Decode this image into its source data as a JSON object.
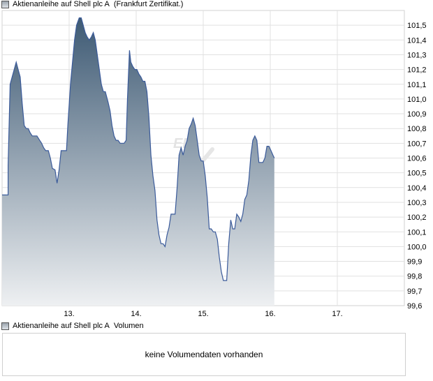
{
  "title_prefix": "Aktienanleihe auf Shell plc A",
  "title_suffix": "(Frankfurt Zertifikat.)",
  "volume_legend_prefix": "Aktienanleihe auf Shell plc A",
  "volume_legend_suffix": "Volumen",
  "volume_message": "keine Volumendaten vorhanden",
  "watermark_left": "EN",
  "watermark_right": "CK",
  "colors": {
    "line": "#3a5a9a",
    "fill_top": "#3e5a74",
    "fill_bottom": "#eef0f2",
    "grid": "#e1e1e1"
  },
  "chart_data": {
    "type": "area",
    "ylim": [
      99.6,
      101.6
    ],
    "y_ticks": [
      "101,5",
      "101,4",
      "101,3",
      "101,2",
      "101,1",
      "101,0",
      "100,9",
      "100,8",
      "100,7",
      "100,6",
      "100,5",
      "100,4",
      "100,3",
      "100,2",
      "100,1",
      "100,0",
      "99,9",
      "99,8",
      "99,7",
      "99,6"
    ],
    "x_ticks": [
      {
        "label": "13.",
        "x": 13
      },
      {
        "label": "14.",
        "x": 14
      },
      {
        "label": "15.",
        "x": 15
      },
      {
        "label": "16.",
        "x": 16
      },
      {
        "label": "17.",
        "x": 17
      }
    ],
    "xlim": [
      12.0,
      18.0
    ],
    "grid": true,
    "points": [
      [
        12.0,
        100.35
      ],
      [
        12.09,
        100.35
      ],
      [
        12.09,
        100.55
      ],
      [
        12.12,
        101.1
      ],
      [
        12.15,
        101.15
      ],
      [
        12.18,
        101.2
      ],
      [
        12.21,
        101.25
      ],
      [
        12.24,
        101.2
      ],
      [
        12.27,
        101.15
      ],
      [
        12.3,
        100.97
      ],
      [
        12.33,
        100.82
      ],
      [
        12.36,
        100.8
      ],
      [
        12.39,
        100.8
      ],
      [
        12.42,
        100.77
      ],
      [
        12.45,
        100.75
      ],
      [
        12.48,
        100.75
      ],
      [
        12.52,
        100.75
      ],
      [
        12.56,
        100.72
      ],
      [
        12.59,
        100.7
      ],
      [
        12.62,
        100.67
      ],
      [
        12.65,
        100.65
      ],
      [
        12.69,
        100.65
      ],
      [
        12.72,
        100.6
      ],
      [
        12.75,
        100.53
      ],
      [
        12.79,
        100.52
      ],
      [
        12.82,
        100.43
      ],
      [
        12.85,
        100.52
      ],
      [
        12.88,
        100.65
      ],
      [
        12.91,
        100.65
      ],
      [
        12.96,
        100.65
      ],
      [
        12.98,
        100.82
      ],
      [
        13.02,
        101.1
      ],
      [
        13.05,
        101.25
      ],
      [
        13.08,
        101.4
      ],
      [
        13.11,
        101.5
      ],
      [
        13.15,
        101.55
      ],
      [
        13.18,
        101.55
      ],
      [
        13.21,
        101.5
      ],
      [
        13.24,
        101.45
      ],
      [
        13.27,
        101.42
      ],
      [
        13.3,
        101.4
      ],
      [
        13.33,
        101.42
      ],
      [
        13.36,
        101.45
      ],
      [
        13.39,
        101.4
      ],
      [
        13.42,
        101.3
      ],
      [
        13.45,
        101.2
      ],
      [
        13.48,
        101.1
      ],
      [
        13.51,
        101.05
      ],
      [
        13.54,
        101.05
      ],
      [
        13.58,
        100.98
      ],
      [
        13.61,
        100.92
      ],
      [
        13.64,
        100.82
      ],
      [
        13.67,
        100.75
      ],
      [
        13.7,
        100.72
      ],
      [
        13.73,
        100.72
      ],
      [
        13.76,
        100.7
      ],
      [
        13.79,
        100.7
      ],
      [
        13.82,
        100.7
      ],
      [
        13.85,
        100.72
      ],
      [
        13.87,
        101.0
      ],
      [
        13.9,
        101.33
      ],
      [
        13.92,
        101.25
      ],
      [
        13.95,
        101.22
      ],
      [
        13.98,
        101.2
      ],
      [
        14.01,
        101.2
      ],
      [
        14.04,
        101.17
      ],
      [
        14.07,
        101.15
      ],
      [
        14.1,
        101.12
      ],
      [
        14.13,
        101.12
      ],
      [
        14.16,
        101.05
      ],
      [
        14.19,
        100.88
      ],
      [
        14.22,
        100.62
      ],
      [
        14.25,
        100.48
      ],
      [
        14.28,
        100.38
      ],
      [
        14.31,
        100.18
      ],
      [
        14.34,
        100.08
      ],
      [
        14.37,
        100.02
      ],
      [
        14.4,
        100.02
      ],
      [
        14.43,
        100.0
      ],
      [
        14.46,
        100.08
      ],
      [
        14.49,
        100.13
      ],
      [
        14.52,
        100.22
      ],
      [
        14.55,
        100.22
      ],
      [
        14.58,
        100.22
      ],
      [
        14.61,
        100.4
      ],
      [
        14.64,
        100.62
      ],
      [
        14.67,
        100.67
      ],
      [
        14.7,
        100.62
      ],
      [
        14.73,
        100.68
      ],
      [
        14.76,
        100.72
      ],
      [
        14.79,
        100.8
      ],
      [
        14.82,
        100.83
      ],
      [
        14.85,
        100.87
      ],
      [
        14.88,
        100.82
      ],
      [
        14.91,
        100.72
      ],
      [
        14.94,
        100.62
      ],
      [
        14.97,
        100.58
      ],
      [
        15.0,
        100.58
      ],
      [
        15.03,
        100.48
      ],
      [
        15.06,
        100.33
      ],
      [
        15.09,
        100.12
      ],
      [
        15.12,
        100.12
      ],
      [
        15.15,
        100.1
      ],
      [
        15.18,
        100.1
      ],
      [
        15.21,
        100.05
      ],
      [
        15.24,
        99.93
      ],
      [
        15.27,
        99.83
      ],
      [
        15.3,
        99.77
      ],
      [
        15.35,
        99.77
      ],
      [
        15.38,
        100.02
      ],
      [
        15.41,
        100.18
      ],
      [
        15.44,
        100.12
      ],
      [
        15.47,
        100.12
      ],
      [
        15.5,
        100.22
      ],
      [
        15.53,
        100.2
      ],
      [
        15.56,
        100.17
      ],
      [
        15.59,
        100.22
      ],
      [
        15.62,
        100.32
      ],
      [
        15.65,
        100.35
      ],
      [
        15.68,
        100.45
      ],
      [
        15.71,
        100.62
      ],
      [
        15.74,
        100.72
      ],
      [
        15.77,
        100.75
      ],
      [
        15.8,
        100.72
      ],
      [
        15.83,
        100.57
      ],
      [
        15.86,
        100.57
      ],
      [
        15.89,
        100.57
      ],
      [
        15.92,
        100.6
      ],
      [
        15.95,
        100.68
      ],
      [
        15.98,
        100.68
      ],
      [
        16.01,
        100.65
      ],
      [
        16.04,
        100.62
      ],
      [
        16.06,
        100.6
      ]
    ]
  }
}
